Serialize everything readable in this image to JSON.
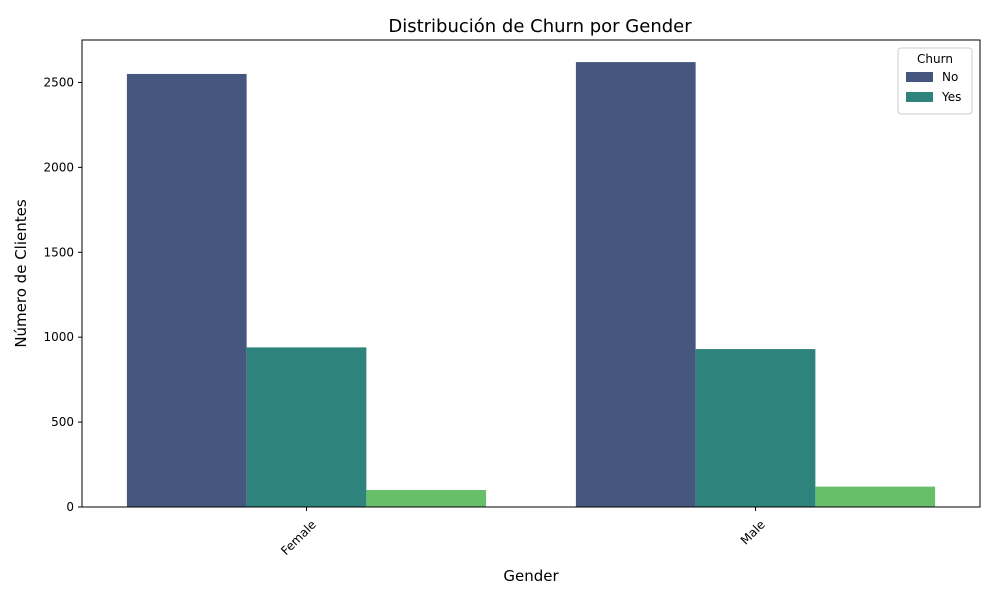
{
  "chart_data": {
    "type": "bar",
    "title": "Distribución de Churn por Gender",
    "xlabel": "Gender",
    "ylabel": "Número de Clientes",
    "categories": [
      "Female",
      "Male"
    ],
    "ylim": [
      0,
      2750
    ],
    "yticks": [
      0,
      500,
      1000,
      1500,
      2000,
      2500
    ],
    "grid": false,
    "legend": {
      "title": "Churn",
      "placement": "top-right",
      "entries": [
        "No",
        "Yes"
      ]
    },
    "series": [
      {
        "name": "No",
        "color": "#46577f",
        "values": [
          2550,
          2620
        ]
      },
      {
        "name": "Yes",
        "color": "#2e837c",
        "values": [
          940,
          930
        ]
      },
      {
        "color": "#67bf6a",
        "values": [
          100,
          120
        ]
      }
    ]
  }
}
